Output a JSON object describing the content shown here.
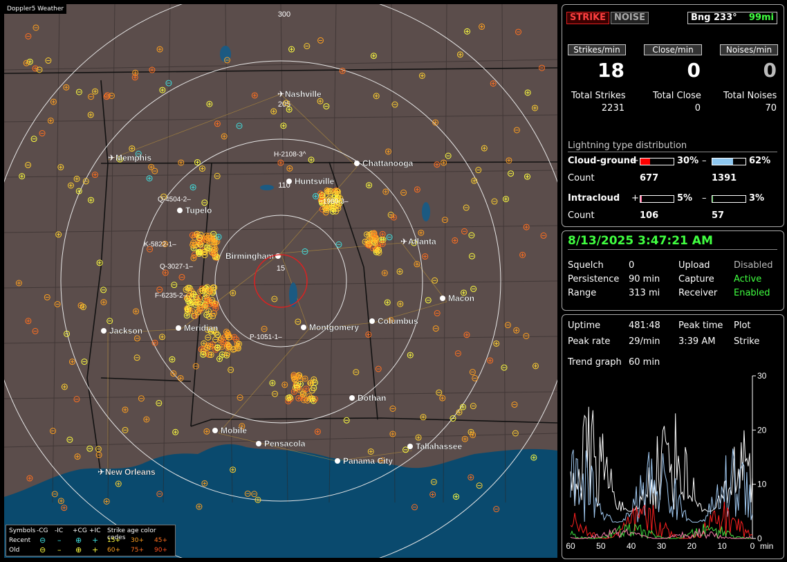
{
  "app": {
    "title": "Doppler5 Weather"
  },
  "map": {
    "ring_labels": [
      "300",
      "205",
      "110",
      "15"
    ],
    "cities": [
      {
        "name": "Nashville",
        "type": "airport"
      },
      {
        "name": "Memphis",
        "type": "airport"
      },
      {
        "name": "Chattanooga",
        "type": "dot"
      },
      {
        "name": "Huntsville",
        "type": "dot"
      },
      {
        "name": "Tupelo",
        "type": "dot"
      },
      {
        "name": "Birmingham",
        "type": "dot"
      },
      {
        "name": "Atlanta",
        "type": "airport"
      },
      {
        "name": "Macon",
        "type": "dot"
      },
      {
        "name": "Jackson",
        "type": "dot"
      },
      {
        "name": "Meridian",
        "type": "dot"
      },
      {
        "name": "Montgomery",
        "type": "dot"
      },
      {
        "name": "Columbus",
        "type": "dot"
      },
      {
        "name": "Dothan",
        "type": "dot"
      },
      {
        "name": "Mobile",
        "type": "dot"
      },
      {
        "name": "Pensacola",
        "type": "dot"
      },
      {
        "name": "Tallahassee",
        "type": "dot"
      },
      {
        "name": "Panama City",
        "type": "dot"
      },
      {
        "name": "New Orleans",
        "type": "airport"
      }
    ],
    "storm_cells": [
      "H-2108-3^",
      "~1960-3–",
      "Q-4504-2–",
      "K-5822-1–",
      "Q-3027-1–",
      "F-6235-2–",
      "P-1051-1–"
    ]
  },
  "legend": {
    "symbols_title": "Symbols",
    "col_neg_cg": "-CG",
    "col_neg_ic": "-IC",
    "col_pos_cg": "+CG",
    "col_pos_ic": "+IC",
    "age_title": "Strike age color codes",
    "recent_label": "Recent",
    "old_label": "Old",
    "recent_ages": [
      "15+",
      "30+",
      "45+"
    ],
    "old_ages": [
      "60+",
      "75+",
      "90+"
    ],
    "age_colors": [
      "#ffff40",
      "#ffa020",
      "#ff7020"
    ]
  },
  "status": {
    "strike_tag": "STRIKE",
    "noise_tag": "NOISE",
    "bearing": "Bng 233°",
    "distance": "99mi",
    "strikes_min_label": "Strikes/min",
    "close_min_label": "Close/min",
    "noises_min_label": "Noises/min",
    "strikes_min": "18",
    "close_min": "0",
    "noises_min": "0",
    "total_strikes_label": "Total Strikes",
    "total_close_label": "Total Close",
    "total_noises_label": "Total Noises",
    "total_strikes": "2231",
    "total_close": "0",
    "total_noises": "70"
  },
  "distribution": {
    "title": "Lightning type distribution",
    "cg_label": "Cloud-ground",
    "ic_label": "Intracloud",
    "count_label": "Count",
    "plus": "+",
    "minus": "–",
    "cg_pos_pct": "30%",
    "cg_pos_frac": 0.3,
    "cg_pos_color": "#ff0000",
    "cg_neg_pct": "62%",
    "cg_neg_frac": 0.62,
    "cg_neg_color": "#8fc8f0",
    "ic_pos_pct": "5%",
    "ic_pos_frac": 0.05,
    "ic_pos_color": "#ff70a0",
    "ic_neg_pct": "3%",
    "ic_neg_frac": 0.03,
    "ic_neg_color": "#40c040",
    "cg_pos_count": "677",
    "cg_neg_count": "1391",
    "ic_pos_count": "106",
    "ic_neg_count": "57"
  },
  "settings": {
    "datetime": "8/13/2025 3:47:21 AM",
    "squelch_label": "Squelch",
    "squelch": "0",
    "persistence_label": "Persistence",
    "persistence": "90 min",
    "range_label": "Range",
    "range": "313 mi",
    "upload_label": "Upload",
    "upload": "Disabled",
    "capture_label": "Capture",
    "capture": "Active",
    "receiver_label": "Receiver",
    "receiver": "Enabled"
  },
  "stats": {
    "uptime_label": "Uptime",
    "uptime": "481:48",
    "peak_time_label": "Peak time",
    "peak_time": "3:39 AM",
    "plot_label": "Plot",
    "plot": "Strike",
    "peak_rate_label": "Peak rate",
    "peak_rate": "29/min",
    "trend_label": "Trend graph",
    "trend": "60 min"
  },
  "chart_data": {
    "type": "line",
    "xlabel": "min",
    "x_ticks": [
      "60",
      "50",
      "40",
      "30",
      "20",
      "10",
      "0"
    ],
    "y_ticks": [
      "30",
      "20",
      "10",
      "0"
    ],
    "xlim": [
      60,
      0
    ],
    "ylim": [
      0,
      30
    ],
    "series": [
      {
        "color": "#ffffff"
      },
      {
        "color": "#a0c8f0"
      },
      {
        "color": "#ff2020"
      },
      {
        "color": "#40e040"
      },
      {
        "color": "#ff80b0"
      }
    ]
  }
}
